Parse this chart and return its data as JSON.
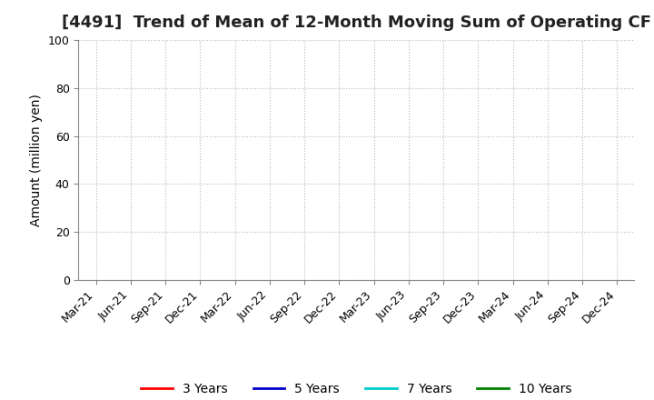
{
  "title": "[4491]  Trend of Mean of 12-Month Moving Sum of Operating CF",
  "ylabel": "Amount (million yen)",
  "ylim": [
    0,
    100
  ],
  "yticks": [
    0,
    20,
    40,
    60,
    80,
    100
  ],
  "background_color": "#ffffff",
  "grid_color": "#bbbbbb",
  "x_tick_labels": [
    "Mar-21",
    "Jun-21",
    "Sep-21",
    "Dec-21",
    "Mar-22",
    "Jun-22",
    "Sep-22",
    "Dec-22",
    "Mar-23",
    "Jun-23",
    "Sep-23",
    "Dec-23",
    "Mar-24",
    "Jun-24",
    "Sep-24",
    "Dec-24"
  ],
  "legend_entries": [
    {
      "label": "3 Years",
      "color": "#ff0000"
    },
    {
      "label": "5 Years",
      "color": "#0000cc"
    },
    {
      "label": "7 Years",
      "color": "#00cccc"
    },
    {
      "label": "10 Years",
      "color": "#008000"
    }
  ],
  "title_fontsize": 13,
  "axis_label_fontsize": 10,
  "tick_fontsize": 9,
  "legend_fontsize": 10
}
